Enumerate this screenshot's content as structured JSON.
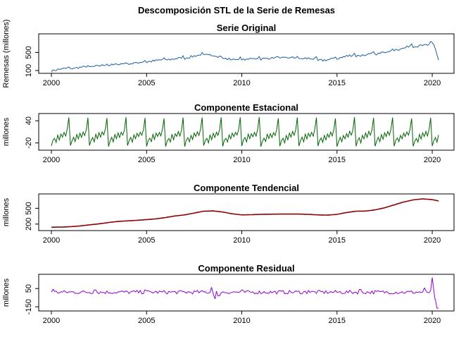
{
  "title": "Descomposición STL de la Serie de Remesas",
  "chart_data": [
    {
      "type": "line",
      "title": "Serie Original",
      "ylabel": "Remesas (millones)",
      "color": "#1f5f9f",
      "xlim": [
        2000,
        2020.33
      ],
      "ylim": [
        100,
        850
      ],
      "yticks": [
        100,
        500
      ],
      "xticks": [
        2000,
        2005,
        2010,
        2015,
        2020
      ],
      "points": [
        [
          2000.0,
          100
        ],
        [
          2000.5,
          135
        ],
        [
          2001.0,
          150
        ],
        [
          2001.5,
          170
        ],
        [
          2002.0,
          185
        ],
        [
          2002.5,
          205
        ],
        [
          2003.0,
          225
        ],
        [
          2003.5,
          240
        ],
        [
          2004.0,
          255
        ],
        [
          2004.5,
          270
        ],
        [
          2005.0,
          300
        ],
        [
          2005.5,
          320
        ],
        [
          2006.0,
          345
        ],
        [
          2006.5,
          360
        ],
        [
          2007.0,
          385
        ],
        [
          2007.5,
          420
        ],
        [
          2008.0,
          455
        ],
        [
          2008.5,
          440
        ],
        [
          2009.0,
          380
        ],
        [
          2009.5,
          345
        ],
        [
          2010.0,
          350
        ],
        [
          2010.5,
          360
        ],
        [
          2011.0,
          370
        ],
        [
          2011.5,
          375
        ],
        [
          2012.0,
          385
        ],
        [
          2012.5,
          385
        ],
        [
          2013.0,
          375
        ],
        [
          2013.5,
          370
        ],
        [
          2014.0,
          340
        ],
        [
          2014.5,
          335
        ],
        [
          2015.0,
          375
        ],
        [
          2015.5,
          420
        ],
        [
          2016.0,
          440
        ],
        [
          2016.5,
          445
        ],
        [
          2017.0,
          470
        ],
        [
          2017.5,
          510
        ],
        [
          2018.0,
          560
        ],
        [
          2018.5,
          600
        ],
        [
          2019.0,
          640
        ],
        [
          2019.5,
          660
        ],
        [
          2019.9,
          680
        ],
        [
          2020.0,
          760
        ],
        [
          2020.15,
          600
        ],
        [
          2020.33,
          330
        ]
      ]
    },
    {
      "type": "line",
      "title": "Componente Estacional",
      "ylabel": "millones",
      "color": "#006400",
      "xlim": [
        2000,
        2020.33
      ],
      "ylim": [
        -32,
        52
      ],
      "yticks": [
        -20,
        40
      ],
      "xticks": [
        2000,
        2005,
        2010,
        2015,
        2020
      ],
      "seasonal_pattern_by_month": [
        -28,
        -14,
        -6,
        -18,
        2,
        -10,
        6,
        -4,
        10,
        0,
        16,
        48
      ]
    },
    {
      "type": "line",
      "title": "Componente Tendencial",
      "ylabel": "millones",
      "color": "#8b0000",
      "xlim": [
        2000,
        2020.33
      ],
      "ylim": [
        130,
        720
      ],
      "yticks": [
        200,
        500
      ],
      "xticks": [
        2000,
        2005,
        2010,
        2015,
        2020
      ],
      "points": [
        [
          2000.0,
          140
        ],
        [
          2000.5,
          143
        ],
        [
          2001.0,
          150
        ],
        [
          2001.5,
          165
        ],
        [
          2002.0,
          185
        ],
        [
          2002.5,
          205
        ],
        [
          2003.0,
          230
        ],
        [
          2003.5,
          250
        ],
        [
          2004.0,
          262
        ],
        [
          2004.5,
          272
        ],
        [
          2005.0,
          285
        ],
        [
          2005.5,
          300
        ],
        [
          2006.0,
          325
        ],
        [
          2006.5,
          355
        ],
        [
          2007.0,
          375
        ],
        [
          2007.5,
          410
        ],
        [
          2008.0,
          445
        ],
        [
          2008.5,
          450
        ],
        [
          2009.0,
          430
        ],
        [
          2009.5,
          395
        ],
        [
          2010.0,
          375
        ],
        [
          2010.5,
          378
        ],
        [
          2011.0,
          385
        ],
        [
          2011.5,
          388
        ],
        [
          2012.0,
          390
        ],
        [
          2012.5,
          390
        ],
        [
          2013.0,
          390
        ],
        [
          2013.5,
          385
        ],
        [
          2014.0,
          375
        ],
        [
          2014.5,
          370
        ],
        [
          2015.0,
          385
        ],
        [
          2015.5,
          420
        ],
        [
          2016.0,
          445
        ],
        [
          2016.5,
          448
        ],
        [
          2017.0,
          470
        ],
        [
          2017.5,
          510
        ],
        [
          2018.0,
          565
        ],
        [
          2018.5,
          620
        ],
        [
          2019.0,
          660
        ],
        [
          2019.5,
          680
        ],
        [
          2020.0,
          665
        ],
        [
          2020.33,
          640
        ]
      ]
    },
    {
      "type": "line",
      "title": "Componente Residual",
      "ylabel": "millones",
      "color": "#9400d3",
      "xlim": [
        2000,
        2020.33
      ],
      "ylim": [
        -165,
        175
      ],
      "yticks": [
        -150,
        50
      ],
      "xticks": [
        2000,
        2005,
        2010,
        2015,
        2020
      ],
      "baseline": 10,
      "spikes": [
        [
          2000.1,
          40
        ],
        [
          2002.3,
          35
        ],
        [
          2004.9,
          35
        ],
        [
          2008.4,
          60
        ],
        [
          2008.6,
          -60
        ],
        [
          2008.8,
          -30
        ],
        [
          2010.0,
          35
        ],
        [
          2013.5,
          30
        ],
        [
          2016.2,
          40
        ],
        [
          2019.6,
          55
        ],
        [
          2020.0,
          170
        ],
        [
          2020.15,
          -70
        ],
        [
          2020.3,
          -165
        ]
      ]
    }
  ]
}
